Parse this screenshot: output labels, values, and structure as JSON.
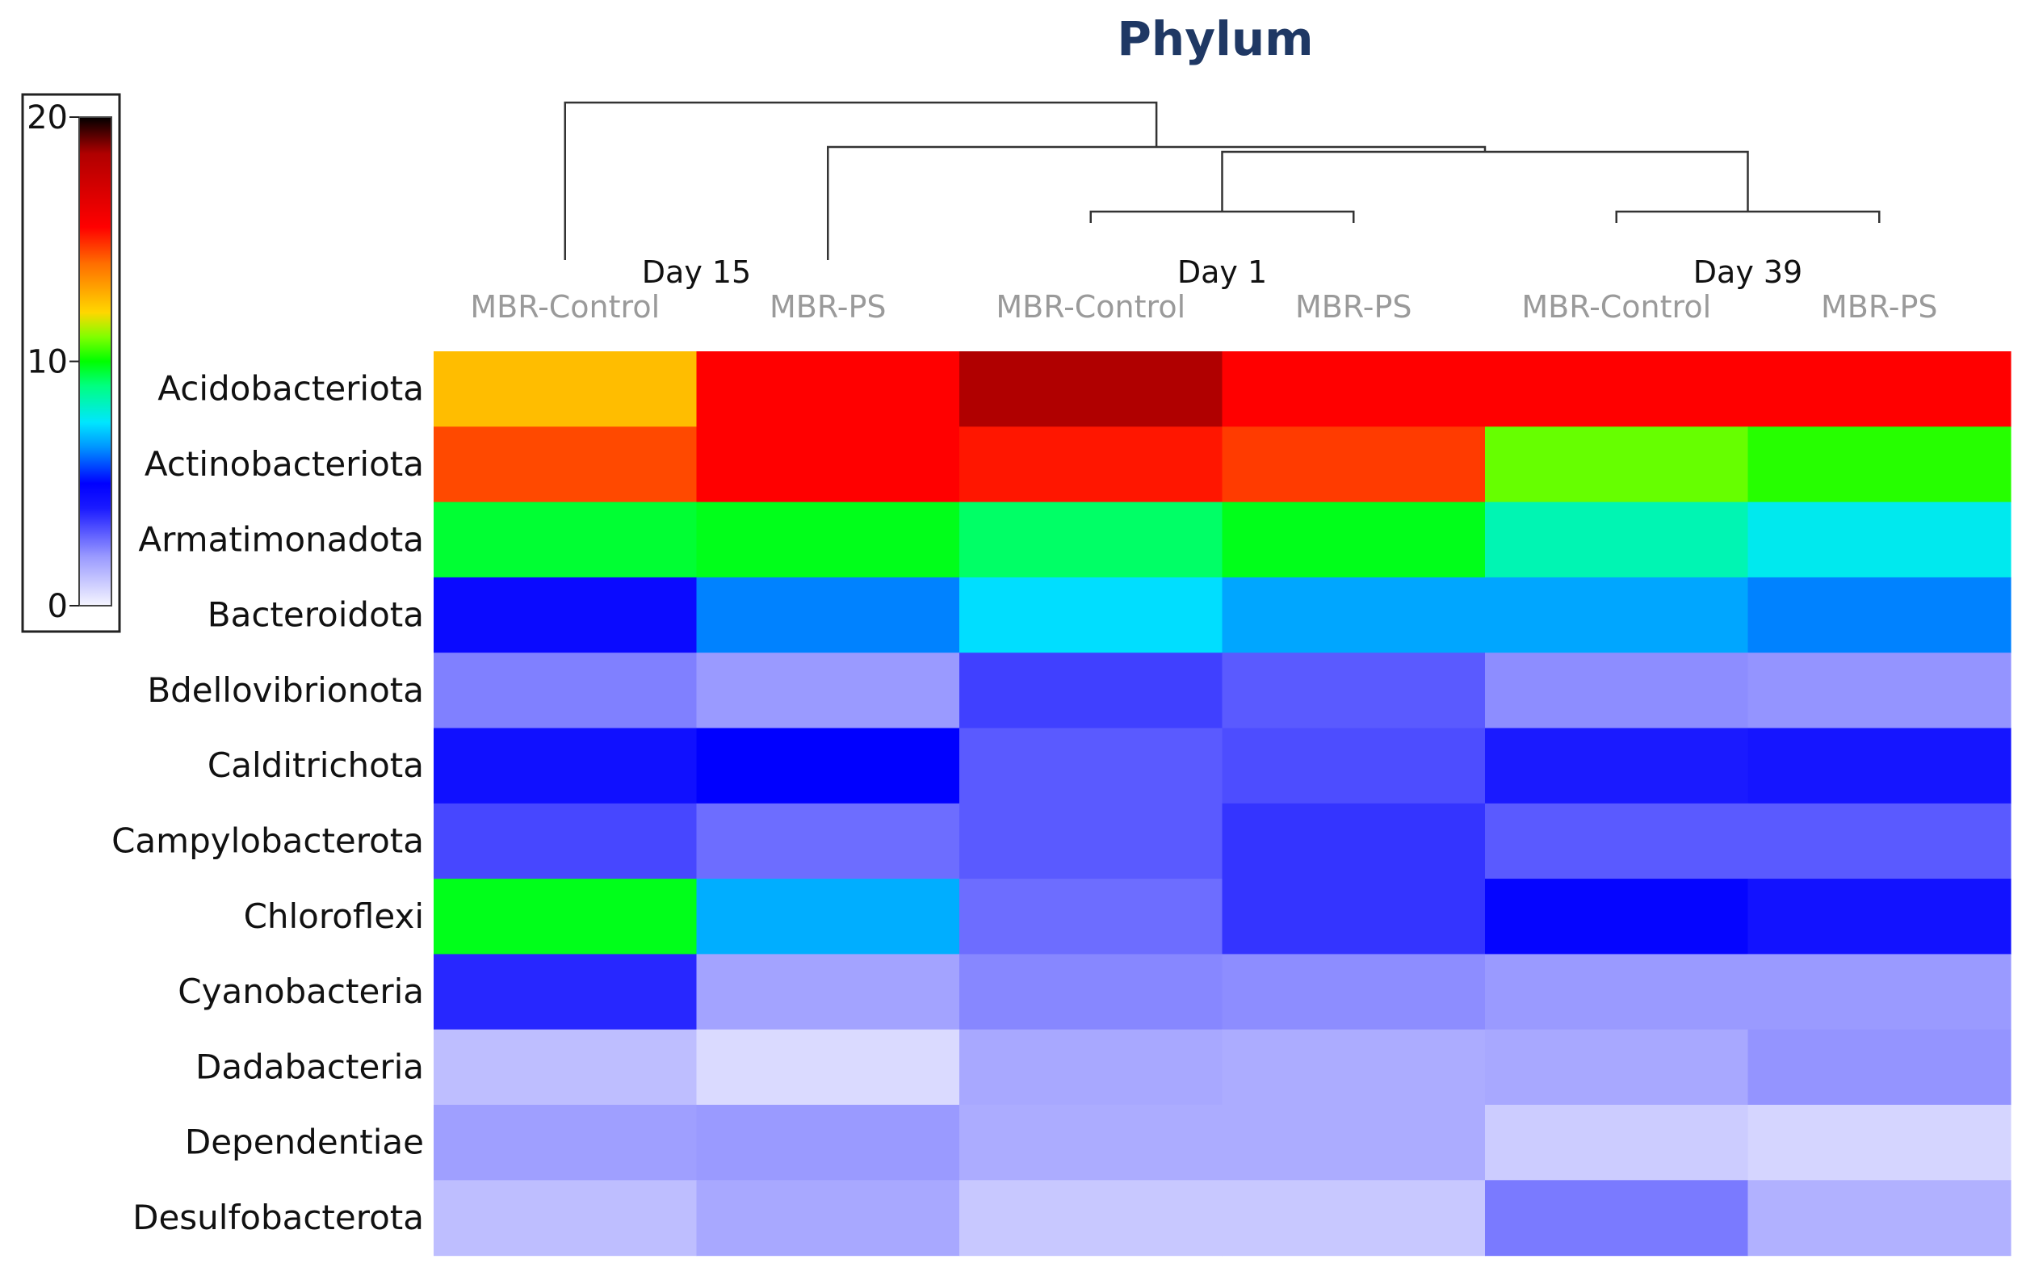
{
  "chart_data": {
    "type": "heatmap",
    "title": "Phylum",
    "title_color": "#1f3864",
    "groups": [
      {
        "label": "Day 15",
        "columns": [
          0,
          1
        ]
      },
      {
        "label": "Day 1",
        "columns": [
          2,
          3
        ]
      },
      {
        "label": "Day 39",
        "columns": [
          4,
          5
        ]
      }
    ],
    "columns": [
      "MBR-Control",
      "MBR-PS",
      "MBR-Control",
      "MBR-PS",
      "MBR-Control",
      "MBR-PS"
    ],
    "column_label_color": "#9a9a9a",
    "rows": [
      "Acidobacteriota",
      "Actinobacteriota",
      "Armatimonadota",
      "Bacteroidota",
      "Bdellovibrionota",
      "Calditrichota",
      "Campylobacterota",
      "Chloroflexi",
      "Cyanobacteria",
      "Dadabacteria",
      "Dependentiae",
      "Desulfobacterota"
    ],
    "values": [
      [
        12.5,
        15.5,
        18.5,
        15.5,
        15.5,
        15.5
      ],
      [
        14.5,
        15.5,
        15.2,
        14.7,
        10.8,
        10.3
      ],
      [
        9.6,
        9.8,
        9.2,
        9.8,
        8.4,
        7.7
      ],
      [
        4.6,
        6.3,
        7.4,
        6.7,
        6.7,
        6.3
      ],
      [
        2.4,
        2.0,
        3.4,
        3.0,
        2.2,
        2.1
      ],
      [
        4.4,
        5.0,
        3.0,
        3.2,
        4.0,
        4.2
      ],
      [
        3.3,
        2.7,
        3.0,
        3.6,
        3.0,
        3.0
      ],
      [
        9.8,
        6.8,
        2.7,
        3.6,
        4.8,
        4.3
      ],
      [
        3.8,
        1.8,
        2.3,
        2.2,
        2.0,
        2.0
      ],
      [
        1.2,
        0.6,
        1.7,
        1.6,
        1.7,
        2.1
      ],
      [
        1.9,
        2.0,
        1.6,
        1.6,
        0.9,
        0.7
      ],
      [
        1.2,
        1.7,
        1.0,
        1.0,
        2.5,
        1.5
      ]
    ],
    "color_scale": {
      "min": 0,
      "max": 20,
      "ticks": [
        0,
        10,
        20
      ],
      "stops": [
        {
          "value": 0,
          "color": "#f5f5ff"
        },
        {
          "value": 2,
          "color": "#9a9aff"
        },
        {
          "value": 4,
          "color": "#1a1aff"
        },
        {
          "value": 5,
          "color": "#0000ff"
        },
        {
          "value": 6.5,
          "color": "#0096ff"
        },
        {
          "value": 7.5,
          "color": "#00e6ff"
        },
        {
          "value": 9,
          "color": "#00ff80"
        },
        {
          "value": 10,
          "color": "#00ff00"
        },
        {
          "value": 11,
          "color": "#80ff00"
        },
        {
          "value": 12,
          "color": "#ffd700"
        },
        {
          "value": 14,
          "color": "#ff6e00"
        },
        {
          "value": 15.5,
          "color": "#ff0000"
        },
        {
          "value": 18.5,
          "color": "#b00000"
        },
        {
          "value": 20,
          "color": "#000000"
        }
      ]
    },
    "dendrogram": {
      "leaves": [
        "Day 15 MBR-Control",
        "Day 15 MBR-PS",
        "Day 1 MBR-Control",
        "Day 1 MBR-PS",
        "Day 39 MBR-Control",
        "Day 39 MBR-PS"
      ],
      "merges": [
        [
          2,
          3
        ],
        [
          4,
          5
        ],
        [
          6,
          7
        ],
        [
          1,
          8
        ],
        [
          0,
          9
        ]
      ]
    }
  }
}
